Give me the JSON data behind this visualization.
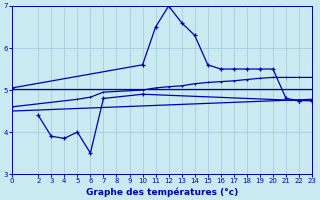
{
  "xlabel": "Graphe des températures (°c)",
  "bg_color": "#c8eaf0",
  "grid_color": "#a0c8d8",
  "line_color": "#0000bb",
  "xlim": [
    0,
    23
  ],
  "ylim": [
    3,
    7
  ],
  "xticks": [
    0,
    2,
    3,
    4,
    5,
    6,
    7,
    8,
    9,
    10,
    11,
    12,
    13,
    14,
    15,
    16,
    17,
    18,
    19,
    20,
    21,
    22,
    23
  ],
  "yticks": [
    3,
    4,
    5,
    6,
    7
  ],
  "line1_x": [
    0,
    10,
    11,
    12,
    13,
    14,
    15,
    16,
    17,
    18,
    19,
    20,
    21,
    22,
    23
  ],
  "line1_y": [
    5.05,
    5.6,
    6.5,
    7.0,
    6.6,
    6.3,
    5.6,
    5.5,
    5.5,
    5.5,
    5.5,
    5.5,
    4.8,
    4.75,
    4.75
  ],
  "line2_x": [
    0,
    23
  ],
  "line2_y": [
    5.02,
    5.02
  ],
  "line3_x": [
    0,
    23
  ],
  "line3_y": [
    4.5,
    4.78
  ],
  "line4_x": [
    2,
    3,
    4,
    5,
    6,
    7,
    10,
    22,
    23
  ],
  "line4_y": [
    4.4,
    3.9,
    3.85,
    4.0,
    3.5,
    4.8,
    4.9,
    4.75,
    4.75
  ],
  "line5_x": [
    0,
    5,
    6,
    7,
    10,
    11,
    12,
    13,
    14,
    15,
    16,
    17,
    18,
    19,
    20,
    21,
    22,
    23
  ],
  "line5_y": [
    4.6,
    4.78,
    4.83,
    4.95,
    5.0,
    5.05,
    5.08,
    5.1,
    5.15,
    5.18,
    5.2,
    5.22,
    5.25,
    5.28,
    5.3,
    5.3,
    5.3,
    5.3
  ]
}
